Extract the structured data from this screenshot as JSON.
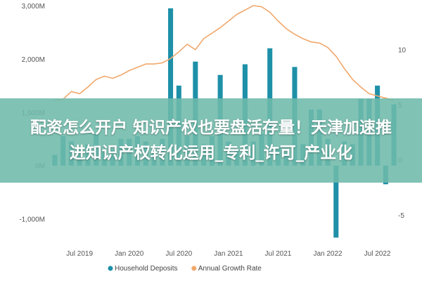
{
  "chart_data": {
    "type": "bar",
    "x_ticks": [
      "Jul 2019",
      "Jan 2020",
      "Jul 2020",
      "Jan 2021",
      "Jul 2021",
      "Jan 2022",
      "Jul 2022"
    ],
    "x_start": "Apr 2019",
    "y_left": {
      "ticks": [
        "3,000M",
        "2,000M",
        "1,000M",
        "0M",
        "-1,000M"
      ],
      "range": [
        -1400,
        3000
      ]
    },
    "y_right": {
      "ticks": [
        "10",
        "5",
        "0",
        "-5"
      ],
      "range": [
        -7.3,
        14
      ]
    },
    "grid": false,
    "legend_position": "bottom",
    "series": [
      {
        "name": "Household Deposits",
        "type": "bar",
        "axis": "left",
        "color": "#1e90a8",
        "values": [
          200,
          550,
          450,
          300,
          400,
          600,
          250,
          300,
          500,
          500,
          550,
          450,
          350,
          500,
          2950,
          1500,
          550,
          1950,
          400,
          550,
          1700,
          450,
          300,
          1900,
          450,
          600,
          2200,
          350,
          250,
          1850,
          400,
          1050,
          1050,
          500,
          -1350,
          450,
          400,
          1250,
          1250,
          1500,
          -350,
          1150
        ]
      },
      {
        "name": "Annual Growth Rate",
        "type": "line",
        "axis": "right",
        "color": "#f0a86c",
        "values": [
          5.4,
          5.5,
          6.2,
          6.0,
          6.6,
          7.3,
          7.6,
          7.4,
          7.7,
          8.1,
          8.4,
          8.7,
          8.7,
          8.8,
          9.2,
          9.8,
          10.5,
          10.0,
          11.0,
          11.5,
          12.0,
          12.6,
          13.2,
          13.6,
          14.0,
          13.9,
          13.4,
          12.6,
          11.9,
          11.4,
          11.0,
          10.7,
          10.6,
          10.2,
          9.4,
          8.3,
          7.3,
          6.6,
          6.0,
          5.8,
          5.6,
          5.4
        ]
      }
    ]
  },
  "banner": {
    "line1": "配资怎么开户 知识产权也要盘活存量！天津加速推",
    "line2": "进知识产权转化运用_专利_许可_产业化"
  }
}
